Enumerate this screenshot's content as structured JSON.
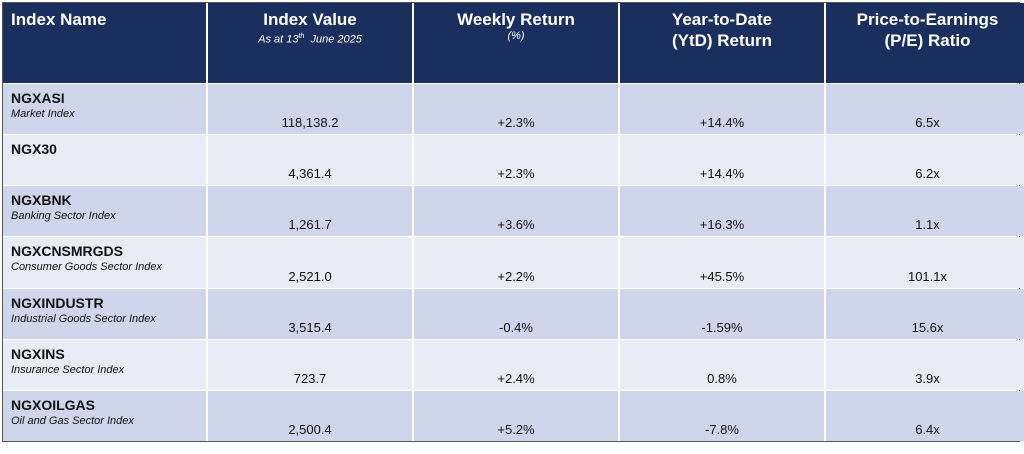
{
  "table": {
    "header": [
      {
        "lines": [
          "Index Name"
        ]
      },
      {
        "lines": [
          "Index Value"
        ],
        "note": {
          "prefix": "As at 13",
          "sup": "th",
          "suffix": "June 2025"
        }
      },
      {
        "lines": [
          "Weekly Return"
        ],
        "note": {
          "prefix": "(%)"
        }
      },
      {
        "lines": [
          "Year-to-Date",
          "(YtD) Return"
        ]
      },
      {
        "lines": [
          "Price-to-Earnings",
          "(P/E) Ratio"
        ]
      }
    ],
    "rows": [
      {
        "name": "NGXASI",
        "desc": "Market Index",
        "cells": [
          "118,138.2",
          "+2.3%",
          "+14.4%",
          "6.5x"
        ]
      },
      {
        "name": "NGX30",
        "desc": null,
        "cells": [
          "4,361.4",
          "+2.3%",
          "+14.4%",
          "6.2x"
        ]
      },
      {
        "name": "NGXBNK",
        "desc": "Banking Sector Index",
        "cells": [
          "1,261.7",
          "+3.6%",
          "+16.3%",
          "1.1x"
        ]
      },
      {
        "name": "NGXCNSMRGDS",
        "desc": "Consumer Goods Sector Index",
        "cells": [
          "2,521.0",
          "+2.2%",
          "+45.5%",
          "101.1x"
        ]
      },
      {
        "name": "NGXINDUSTR",
        "desc": "Industrial Goods Sector Index",
        "cells": [
          "3,515.4",
          "-0.4%",
          "-1.59%",
          "15.6x"
        ]
      },
      {
        "name": "NGXINS",
        "desc": "Insurance Sector Index",
        "cells": [
          "723.7",
          "+2.4%",
          "0.8%",
          "3.9x"
        ]
      },
      {
        "name": "NGXOILGAS",
        "desc": "Oil and Gas Sector Index",
        "cells": [
          "2,500.4",
          "+5.2%",
          "-7.8%",
          "6.4x"
        ]
      }
    ]
  }
}
